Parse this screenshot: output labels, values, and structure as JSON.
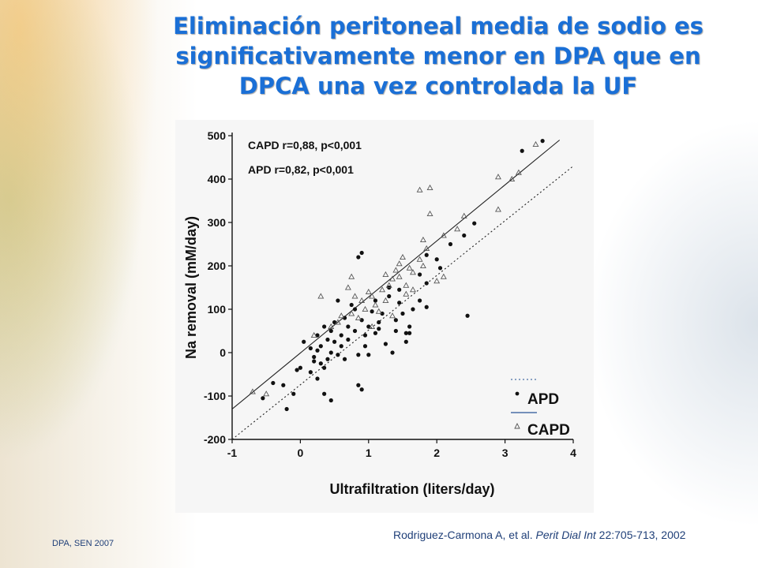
{
  "slide": {
    "title": "Eliminación peritoneal media de sodio es significativamente menor en DPA que en DPCA una vez controlada la UF",
    "footer_left": "DPA, SEN 2007",
    "citation": {
      "authors": "Rodriguez-Carmona A, et al. ",
      "journal": "Perit Dial Int",
      "ref": " 22:705-713, 2002"
    },
    "title_color": "#1a6fd6"
  },
  "chart_data": {
    "type": "scatter",
    "title": "",
    "xlabel": "Ultrafiltration (liters/day)",
    "ylabel": "Na removal (mM/day)",
    "xlim": [
      -1,
      4
    ],
    "ylim": [
      -200,
      500
    ],
    "xticks": [
      "-1",
      "0",
      "1",
      "2",
      "3",
      "4"
    ],
    "yticks": [
      "500",
      "400",
      "300",
      "200",
      "100",
      "0",
      "-100",
      "-200"
    ],
    "annotations": [
      "CAPD r=0,88, p<0,001",
      "APD r=0,82, p<0,001"
    ],
    "legend_position": "bottom-right",
    "series": [
      {
        "name": "APD",
        "marker": "filled-circle",
        "line": "dotted",
        "fit": {
          "x": [
            -1,
            4
          ],
          "y": [
            -200,
            430
          ]
        },
        "points": [
          [
            3.55,
            488
          ],
          [
            3.25,
            465
          ],
          [
            2.55,
            298
          ],
          [
            2.4,
            270
          ],
          [
            2.45,
            85
          ],
          [
            2.2,
            250
          ],
          [
            2.05,
            195
          ],
          [
            2.0,
            215
          ],
          [
            1.85,
            225
          ],
          [
            1.85,
            160
          ],
          [
            1.85,
            105
          ],
          [
            1.75,
            180
          ],
          [
            1.75,
            120
          ],
          [
            1.6,
            60
          ],
          [
            1.65,
            100
          ],
          [
            1.55,
            45
          ],
          [
            1.55,
            25
          ],
          [
            1.5,
            90
          ],
          [
            1.45,
            145
          ],
          [
            1.45,
            115
          ],
          [
            1.4,
            75
          ],
          [
            1.4,
            50
          ],
          [
            1.35,
            0
          ],
          [
            1.3,
            150
          ],
          [
            1.3,
            130
          ],
          [
            1.25,
            20
          ],
          [
            1.2,
            90
          ],
          [
            1.15,
            70
          ],
          [
            1.1,
            120
          ],
          [
            1.1,
            45
          ],
          [
            1.05,
            95
          ],
          [
            1.0,
            60
          ],
          [
            0.95,
            40
          ],
          [
            0.95,
            15
          ],
          [
            0.9,
            75
          ],
          [
            0.9,
            230
          ],
          [
            0.85,
            220
          ],
          [
            0.85,
            -5
          ],
          [
            0.8,
            100
          ],
          [
            0.8,
            50
          ],
          [
            0.75,
            110
          ],
          [
            0.7,
            60
          ],
          [
            0.7,
            30
          ],
          [
            0.65,
            80
          ],
          [
            0.6,
            40
          ],
          [
            0.6,
            15
          ],
          [
            0.55,
            120
          ],
          [
            0.55,
            -5
          ],
          [
            0.5,
            70
          ],
          [
            0.5,
            25
          ],
          [
            0.45,
            50
          ],
          [
            0.45,
            0
          ],
          [
            0.4,
            30
          ],
          [
            0.4,
            -15
          ],
          [
            0.35,
            60
          ],
          [
            0.35,
            -35
          ],
          [
            0.3,
            15
          ],
          [
            0.3,
            -25
          ],
          [
            0.25,
            40
          ],
          [
            0.25,
            5
          ],
          [
            0.2,
            -20
          ],
          [
            0.15,
            10
          ],
          [
            0.15,
            -45
          ],
          [
            0.05,
            25
          ],
          [
            0.0,
            -35
          ],
          [
            -0.05,
            -40
          ],
          [
            -0.1,
            -95
          ],
          [
            -0.25,
            -75
          ],
          [
            -0.4,
            -70
          ],
          [
            -0.55,
            -105
          ],
          [
            0.25,
            -60
          ],
          [
            0.35,
            -95
          ],
          [
            0.9,
            -85
          ],
          [
            0.85,
            -75
          ],
          [
            0.45,
            -110
          ],
          [
            -0.2,
            -130
          ],
          [
            0.2,
            -10
          ],
          [
            0.65,
            -15
          ],
          [
            1.0,
            -5
          ],
          [
            1.15,
            55
          ],
          [
            1.6,
            45
          ]
        ]
      },
      {
        "name": "CAPD",
        "marker": "open-triangle",
        "line": "solid",
        "fit": {
          "x": [
            -1,
            3.8
          ],
          "y": [
            -130,
            490
          ]
        },
        "points": [
          [
            3.45,
            480
          ],
          [
            3.2,
            415
          ],
          [
            3.1,
            400
          ],
          [
            2.9,
            405
          ],
          [
            2.9,
            330
          ],
          [
            2.4,
            315
          ],
          [
            2.3,
            285
          ],
          [
            2.1,
            270
          ],
          [
            2.1,
            175
          ],
          [
            1.9,
            380
          ],
          [
            1.75,
            375
          ],
          [
            1.9,
            320
          ],
          [
            1.85,
            240
          ],
          [
            1.8,
            260
          ],
          [
            1.8,
            200
          ],
          [
            1.75,
            215
          ],
          [
            1.65,
            185
          ],
          [
            1.6,
            195
          ],
          [
            1.55,
            155
          ],
          [
            1.55,
            135
          ],
          [
            1.5,
            220
          ],
          [
            1.45,
            205
          ],
          [
            1.45,
            175
          ],
          [
            1.4,
            190
          ],
          [
            1.35,
            170
          ],
          [
            1.3,
            155
          ],
          [
            1.25,
            180
          ],
          [
            1.25,
            120
          ],
          [
            1.2,
            145
          ],
          [
            1.15,
            95
          ],
          [
            1.1,
            110
          ],
          [
            1.05,
            130
          ],
          [
            1.0,
            140
          ],
          [
            0.95,
            100
          ],
          [
            0.9,
            120
          ],
          [
            0.85,
            80
          ],
          [
            0.8,
            130
          ],
          [
            0.75,
            90
          ],
          [
            0.7,
            150
          ],
          [
            0.6,
            85
          ],
          [
            0.55,
            70
          ],
          [
            0.45,
            60
          ],
          [
            0.3,
            130
          ],
          [
            0.2,
            40
          ],
          [
            -0.5,
            -95
          ],
          [
            -0.7,
            -90
          ],
          [
            1.05,
            60
          ],
          [
            1.35,
            85
          ],
          [
            1.65,
            145
          ],
          [
            2.0,
            165
          ],
          [
            0.75,
            175
          ]
        ]
      }
    ]
  }
}
